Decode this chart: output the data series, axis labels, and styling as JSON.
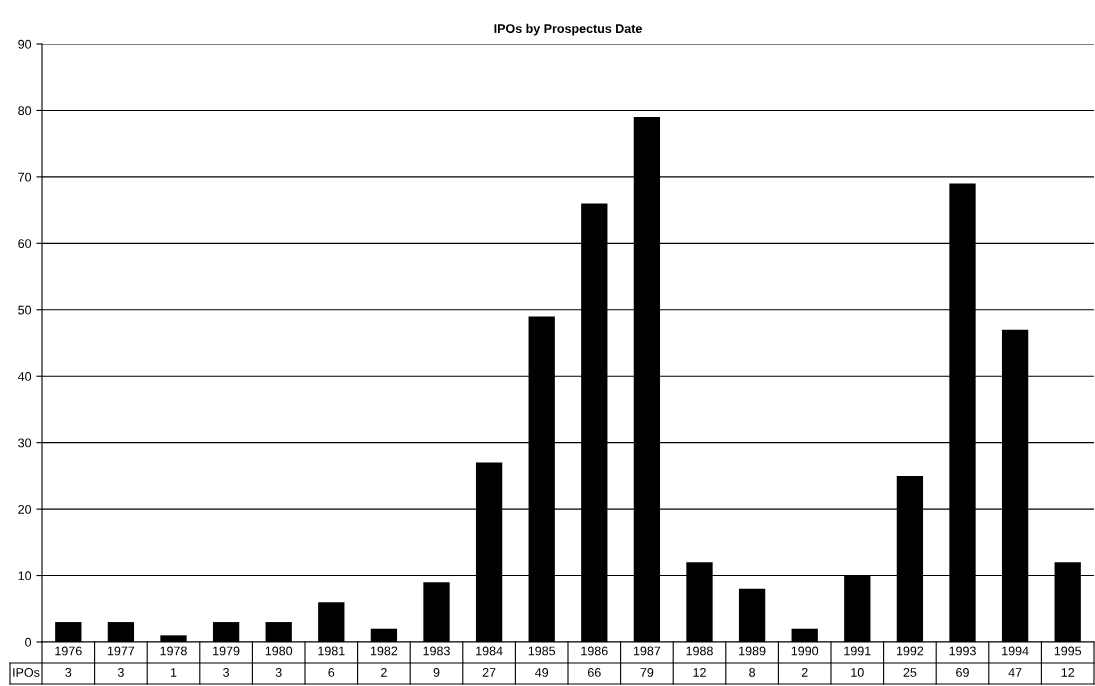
{
  "chart_data": {
    "type": "bar",
    "title": "IPOs by Prospectus Date",
    "categories": [
      "1976",
      "1977",
      "1978",
      "1979",
      "1980",
      "1981",
      "1982",
      "1983",
      "1984",
      "1985",
      "1986",
      "1987",
      "1988",
      "1989",
      "1990",
      "1991",
      "1992",
      "1993",
      "1994",
      "1995"
    ],
    "series": [
      {
        "name": "IPOs",
        "color": "#000000",
        "values": [
          3,
          3,
          1,
          3,
          3,
          6,
          2,
          9,
          27,
          49,
          66,
          79,
          12,
          8,
          2,
          10,
          25,
          69,
          47,
          12
        ]
      }
    ],
    "ylim": [
      0,
      90
    ],
    "yticks": [
      0,
      10,
      20,
      30,
      40,
      50,
      60,
      70,
      80,
      90
    ],
    "grid": "y",
    "data_labels": true
  }
}
